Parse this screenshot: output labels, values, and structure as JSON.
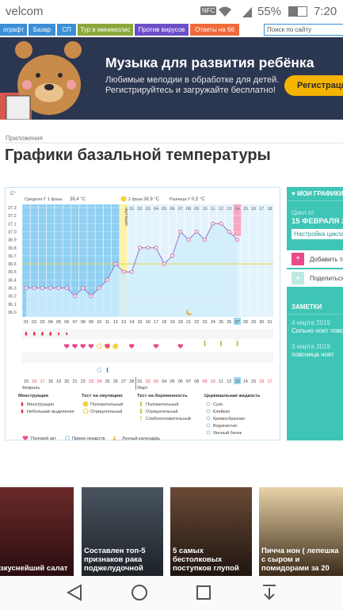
{
  "status_bar": {
    "carrier": "velcom",
    "nfc": "NFC",
    "battery": "55%",
    "time": "7:20"
  },
  "nav": {
    "tabs": [
      "ографт",
      "Базар",
      "СП",
      "Тур в минимолис",
      "Против вирусов",
      "Ответы на 66"
    ],
    "search_placeholder": "Поиск по сайту"
  },
  "banner": {
    "title": "Музыка для развития ребёнка",
    "text_1": "Любимые мелодии в обработке для детей.",
    "text_2": "Регистрируйтесь и загружайте бесплатно!",
    "button": "Регистраци"
  },
  "breadcrumb": "Приложения",
  "page_title": "Графики базальной температуры",
  "bbt": {
    "y_unit": "C°",
    "phase1_label": "Средняя t° 1 фазы",
    "phase1_avg": "36,4 °C",
    "phase2_label": "2 фаза",
    "phase2_avg": "36,9 °C",
    "diff_label": "Разница t°",
    "diff": "0,5 °C",
    "ovulation_label": "овуляция",
    "yticks": [
      37.3,
      37.2,
      37.1,
      {
        "value": 37,
        "label": "37.0"
      },
      36.9,
      36.8,
      36.7,
      36.6,
      36.5,
      36.4,
      36.3,
      36.2,
      36.1,
      {
        "value": 36,
        "label": "36.0"
      }
    ],
    "coverline": 36.6,
    "days": [
      "01",
      "02",
      "03",
      "04",
      "05",
      "06",
      "07",
      "08",
      "09",
      "10",
      "11",
      "12",
      "13",
      "14",
      "15",
      "16",
      "17",
      "18",
      "19",
      "20",
      "21",
      "22",
      "23",
      "24",
      "25",
      "26",
      "27",
      "28",
      "29",
      "30",
      "31"
    ],
    "phase2_days": [
      "01",
      "02",
      "03",
      "04",
      "05",
      "06",
      "07",
      "08",
      "09",
      "10",
      "11",
      "12",
      "13",
      "14",
      "15",
      "16",
      "17",
      "18"
    ],
    "dates": [
      "15",
      "16",
      "17",
      "18",
      "19",
      "20",
      "21",
      "22",
      "23",
      "24",
      "25",
      "26",
      "27",
      "28",
      "01",
      "02",
      "03",
      "04",
      "05",
      "06",
      "07",
      "08",
      "09",
      "10",
      "11",
      "12",
      "13",
      "14",
      "15",
      "16",
      "17"
    ],
    "months": [
      "Февраль",
      "Март"
    ],
    "temps": [
      36.3,
      36.3,
      36.3,
      36.3,
      36.3,
      36.3,
      36.2,
      36.3,
      36.2,
      36.3,
      36.4,
      36.6,
      36.5,
      36.5,
      36.8,
      36.8,
      36.8,
      36.6,
      36.7,
      37.0,
      36.9,
      37.0,
      36.9,
      37.1,
      37.1,
      37.0,
      36.9
    ],
    "legend": {
      "menstruation": {
        "title": "Менструация",
        "items": [
          "Менструация",
          "Небольшие выделения"
        ]
      },
      "ovulation_test": {
        "title": "Тест на овуляцию",
        "items": [
          "Положительный",
          "Отрицательный"
        ]
      },
      "pregnancy_test": {
        "title": "Тест на беременность",
        "items": [
          "Положительный",
          "Отрицательный",
          "Слабоположительный"
        ]
      },
      "cervical": {
        "title": "Цервикальная жидкость",
        "items": [
          "Сухо",
          "Клейкая",
          "Кремообразная",
          "Водянистая",
          "Яичный белок"
        ]
      },
      "bottom": [
        "Половой акт",
        "Прием лекарств",
        "Лунный календарь"
      ]
    }
  },
  "sidebar": {
    "my_charts": "МОИ ГРАФИКИ",
    "cycle_from": "Цикл от",
    "cycle_date": "15 ФЕВРАЛЯ 20",
    "settings": "Настройка цикла",
    "add": "Добавить тем",
    "share": "Поделиться с",
    "notes_title": "ЗАМЕТКИ",
    "notes": [
      {
        "date": "4 марта 2019",
        "text": "Сильно ноет повсюн"
      },
      {
        "date": "3 марта 2019",
        "text": "повсница ноет"
      }
    ]
  },
  "articles": [
    "зкуснейший салат",
    "Составлен топ-5 признаков рака поджелудочной",
    "5 самых бестолковых поступков глупой",
    "Пичча нон ( лепешка с сыром и помидорами за 20"
  ]
}
